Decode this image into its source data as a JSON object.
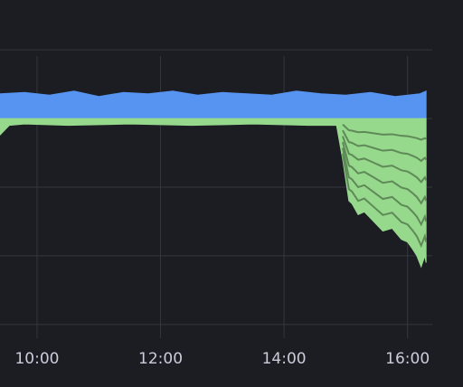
{
  "chart_data": {
    "type": "area",
    "title": "",
    "xlabel": "",
    "ylabel": "",
    "grid": true,
    "legend": "none",
    "x_ticks": [
      "10:00",
      "12:00",
      "14:00",
      "16:00"
    ],
    "x_tick_hours": [
      10,
      12,
      14,
      16
    ],
    "x_range_hours": [
      9.4,
      16.4
    ],
    "y_range": [
      -1.6,
      0.6
    ],
    "y_grid": [
      -1.5,
      -1.0,
      -0.5,
      0.0,
      0.5
    ],
    "series": [
      {
        "color": "#5794f2",
        "baseline": 0,
        "x_hours": [
          9.4,
          9.8,
          10.2,
          10.6,
          11.0,
          11.4,
          11.8,
          12.2,
          12.6,
          13.0,
          13.4,
          13.8,
          14.2,
          14.6,
          15.0,
          15.4,
          15.8,
          16.2,
          16.3
        ],
        "values": [
          0.18,
          0.19,
          0.17,
          0.2,
          0.16,
          0.19,
          0.18,
          0.2,
          0.17,
          0.19,
          0.18,
          0.17,
          0.2,
          0.18,
          0.17,
          0.19,
          0.16,
          0.18,
          0.2
        ]
      },
      {
        "color": "#96d98d",
        "baseline": 0,
        "x_hours": [
          9.4,
          9.55,
          9.8,
          10.5,
          11.5,
          12.5,
          13.5,
          14.4,
          14.85,
          14.95,
          15.05,
          15.1,
          15.2,
          15.3,
          15.45,
          15.6,
          15.75,
          15.9,
          16.0,
          16.08,
          16.15,
          16.22,
          16.28,
          16.3
        ],
        "values": [
          -0.12,
          -0.05,
          -0.04,
          -0.05,
          -0.04,
          -0.05,
          -0.04,
          -0.05,
          -0.05,
          -0.3,
          -0.6,
          -0.62,
          -0.7,
          -0.68,
          -0.75,
          -0.82,
          -0.8,
          -0.88,
          -0.9,
          -0.95,
          -1.0,
          -1.08,
          -1.0,
          -1.05
        ]
      }
    ]
  }
}
